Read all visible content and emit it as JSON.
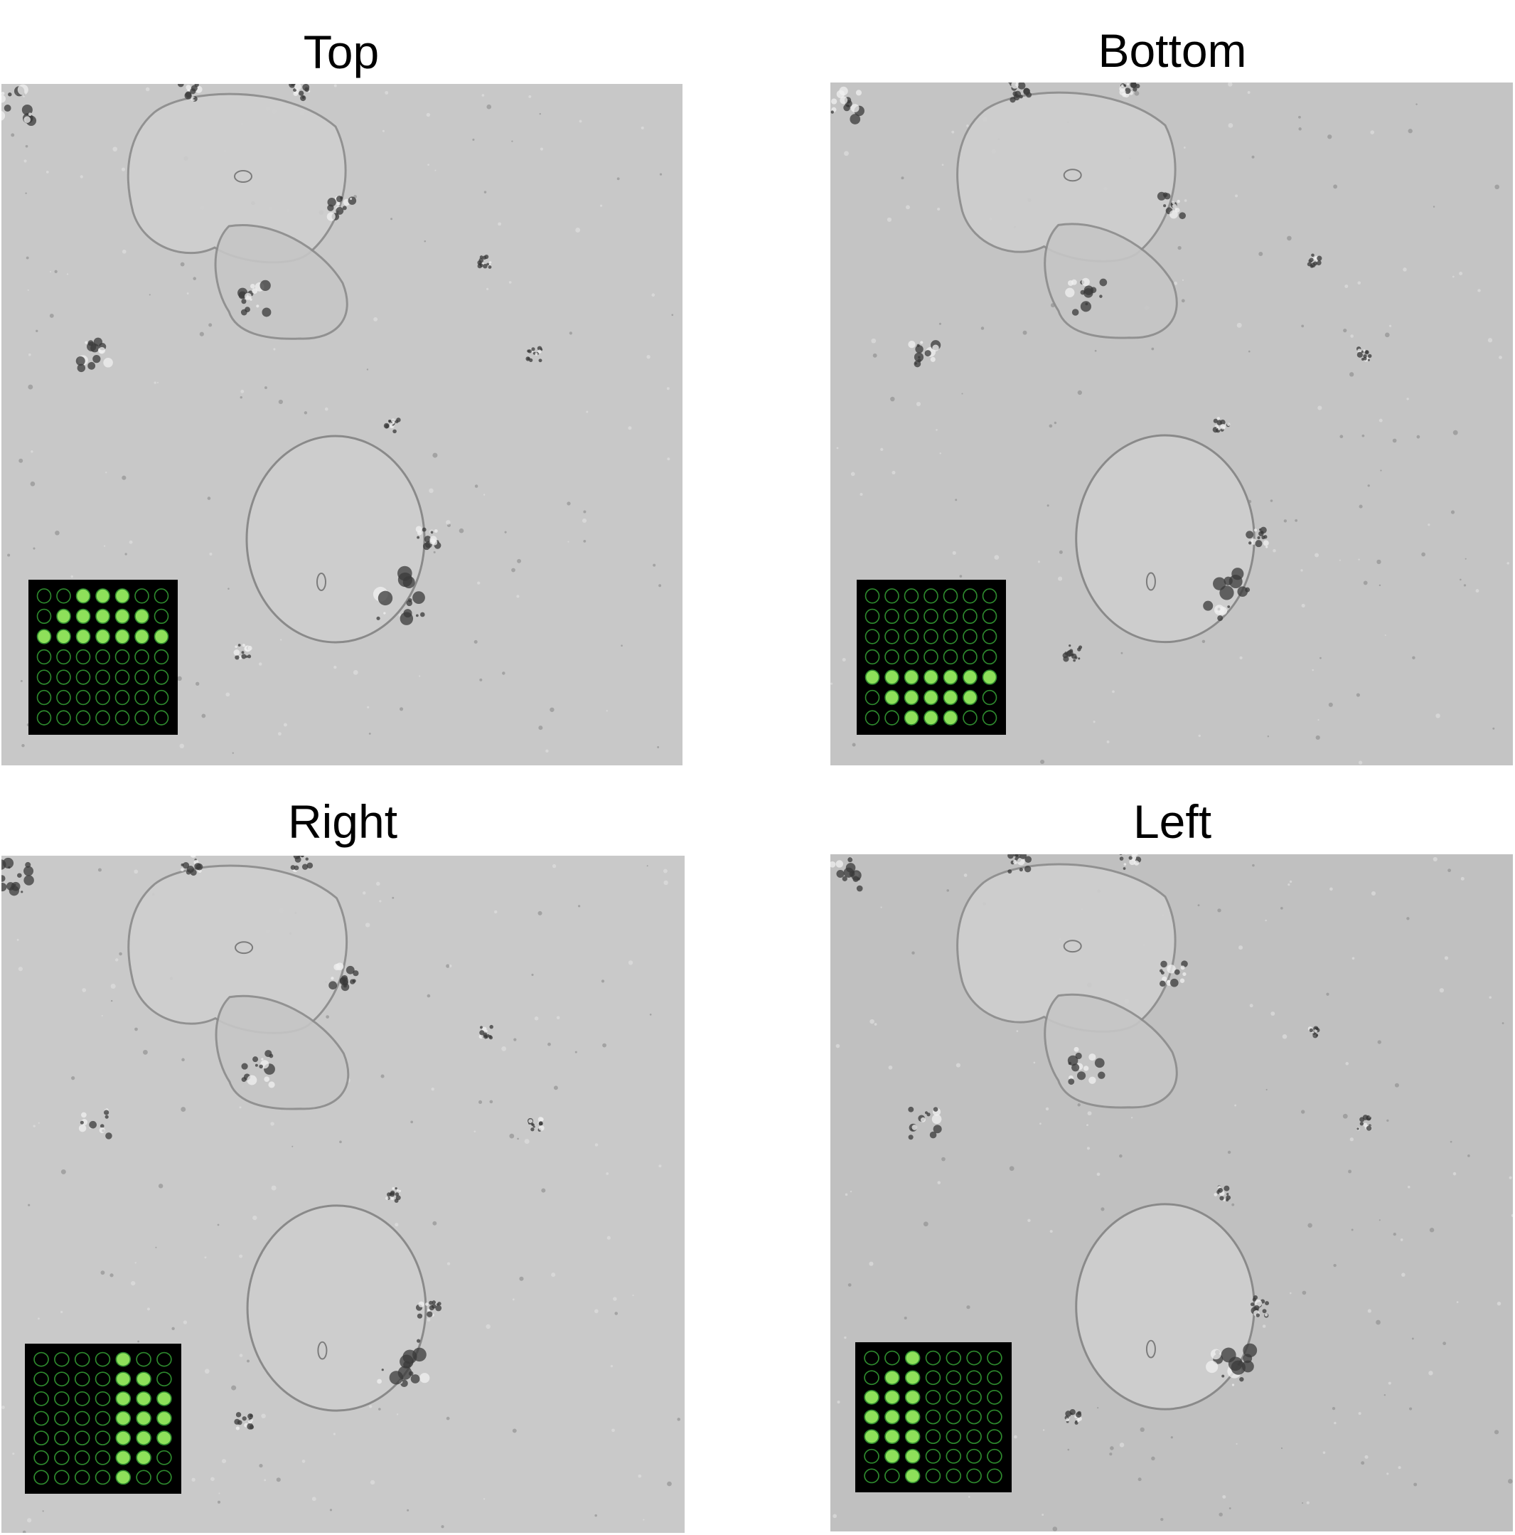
{
  "colors": {
    "led_on_fill": "#8ee05a",
    "led_off_stroke": "#2e8b2e",
    "grid_background": "#000000"
  },
  "panels": [
    {
      "title": "Top",
      "background": "#c8c8c8",
      "led_pattern": [
        [
          0,
          0,
          1,
          1,
          1,
          0,
          0
        ],
        [
          0,
          1,
          1,
          1,
          1,
          1,
          0
        ],
        [
          1,
          1,
          1,
          1,
          1,
          1,
          1
        ],
        [
          0,
          0,
          0,
          0,
          0,
          0,
          0
        ],
        [
          0,
          0,
          0,
          0,
          0,
          0,
          0
        ],
        [
          0,
          0,
          0,
          0,
          0,
          0,
          0
        ],
        [
          0,
          0,
          0,
          0,
          0,
          0,
          0
        ]
      ]
    },
    {
      "title": "Bottom",
      "background": "#c4c4c4",
      "led_pattern": [
        [
          0,
          0,
          0,
          0,
          0,
          0,
          0
        ],
        [
          0,
          0,
          0,
          0,
          0,
          0,
          0
        ],
        [
          0,
          0,
          0,
          0,
          0,
          0,
          0
        ],
        [
          0,
          0,
          0,
          0,
          0,
          0,
          0
        ],
        [
          1,
          1,
          1,
          1,
          1,
          1,
          1
        ],
        [
          0,
          1,
          1,
          1,
          1,
          1,
          0
        ],
        [
          0,
          0,
          1,
          1,
          1,
          0,
          0
        ]
      ]
    },
    {
      "title": "Right",
      "background": "#c9c9c9",
      "led_pattern": [
        [
          0,
          0,
          0,
          0,
          1,
          0,
          0
        ],
        [
          0,
          0,
          0,
          0,
          1,
          1,
          0
        ],
        [
          0,
          0,
          0,
          0,
          1,
          1,
          1
        ],
        [
          0,
          0,
          0,
          0,
          1,
          1,
          1
        ],
        [
          0,
          0,
          0,
          0,
          1,
          1,
          1
        ],
        [
          0,
          0,
          0,
          0,
          1,
          1,
          0
        ],
        [
          0,
          0,
          0,
          0,
          1,
          0,
          0
        ]
      ]
    },
    {
      "title": "Left",
      "background": "#c0c0c0",
      "led_pattern": [
        [
          0,
          0,
          1,
          0,
          0,
          0,
          0
        ],
        [
          0,
          1,
          1,
          0,
          0,
          0,
          0
        ],
        [
          1,
          1,
          1,
          0,
          0,
          0,
          0
        ],
        [
          1,
          1,
          1,
          0,
          0,
          0,
          0
        ],
        [
          1,
          1,
          1,
          0,
          0,
          0,
          0
        ],
        [
          0,
          1,
          1,
          0,
          0,
          0,
          0
        ],
        [
          0,
          0,
          1,
          0,
          0,
          0,
          0
        ]
      ]
    }
  ]
}
